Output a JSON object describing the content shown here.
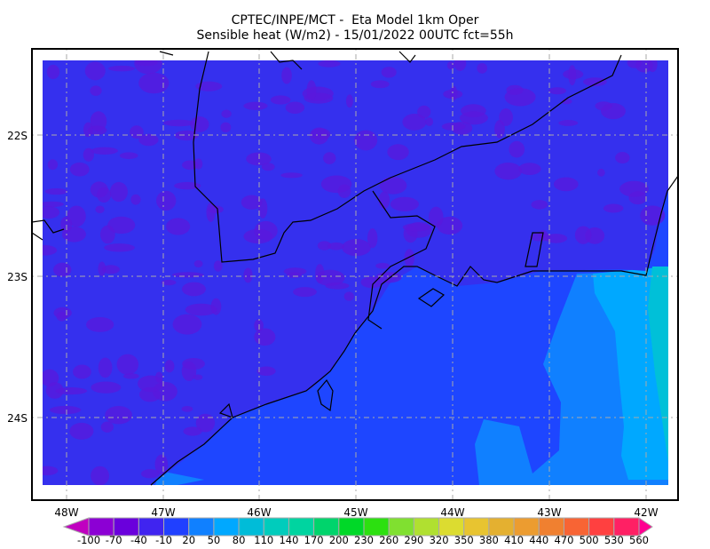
{
  "title": {
    "line1": "CPTEC/INPE/MCT -  Eta Model 1km Oper",
    "line2": "Sensible heat (W/m2) - 15/01/2022 00UTC fct=55h"
  },
  "map": {
    "lon_labels": [
      "48W",
      "47W",
      "46W",
      "45W",
      "44W",
      "43W",
      "42W"
    ],
    "lat_labels": [
      "22S",
      "23S",
      "24S"
    ],
    "colors": {
      "land_base": "#3530ee",
      "land_purple": "#5a18dc",
      "ocean": "#1e46ff",
      "ocean_light": "#1080ff",
      "ocean_sky": "#00a8ff",
      "ocean_cyan": "#00c0d8"
    }
  },
  "colorbar": {
    "labels": [
      "-100",
      "-70",
      "-40",
      "-10",
      "20",
      "50",
      "80",
      "110",
      "140",
      "170",
      "200",
      "230",
      "260",
      "290",
      "320",
      "350",
      "380",
      "410",
      "440",
      "470",
      "500",
      "530",
      "560"
    ],
    "colors": [
      "#8c00d4",
      "#6a00dc",
      "#4024f0",
      "#2040ff",
      "#1080ff",
      "#00a8ff",
      "#00bcd8",
      "#00ccbc",
      "#00d4a0",
      "#00d46c",
      "#00d828",
      "#2ce010",
      "#80e030",
      "#b0e030",
      "#dcdc30",
      "#e8c430",
      "#e4b030",
      "#ec9c30",
      "#f08030",
      "#f86434",
      "#ff4040",
      "#ff2064"
    ],
    "under_color": "#c000c0",
    "over_color": "#ff0090"
  }
}
